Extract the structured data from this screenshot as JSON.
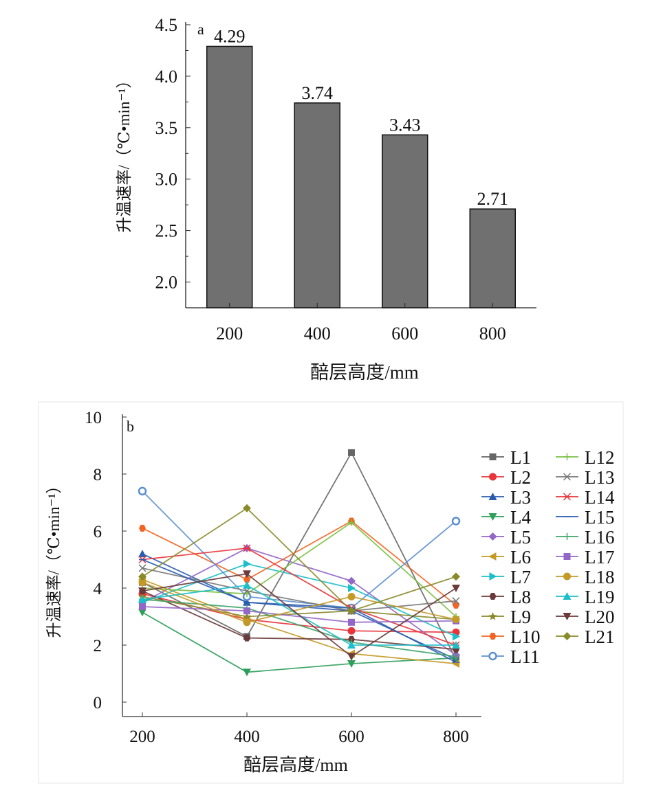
{
  "chart_data": [
    {
      "type": "bar",
      "panel_label": "a",
      "categories": [
        "200",
        "400",
        "600",
        "800"
      ],
      "values": [
        4.29,
        3.74,
        3.43,
        2.71
      ],
      "data_labels": [
        "4.29",
        "3.74",
        "3.43",
        "2.71"
      ],
      "xlabel": "醅层高度/mm",
      "ylabel": "升温速率/（℃•min⁻¹）",
      "ylim": [
        1.75,
        4.5
      ],
      "yticks": [
        "2.0",
        "2.5",
        "3.0",
        "3.5",
        "4.0",
        "4.5"
      ],
      "bar_color": "#707070",
      "grid": false
    },
    {
      "type": "line",
      "panel_label": "b",
      "x": [
        200,
        400,
        600,
        800
      ],
      "xticks": [
        "200",
        "400",
        "600",
        "800"
      ],
      "xlabel": "醅层高度/mm",
      "ylabel": "升温速率/（℃•min⁻¹）",
      "ylim": [
        -0.5,
        10
      ],
      "yticks": [
        "0",
        "2",
        "4",
        "6",
        "8",
        "10"
      ],
      "grid": false,
      "legend_position": "right",
      "series": [
        {
          "name": "L1",
          "color": "#666666",
          "marker": "square",
          "values": [
            4.2,
            2.3,
            8.75,
            1.5
          ]
        },
        {
          "name": "L2",
          "color": "#e8343a",
          "marker": "circle",
          "values": [
            3.8,
            2.9,
            2.5,
            2.45
          ]
        },
        {
          "name": "L3",
          "color": "#2a5db0",
          "marker": "triangle-up",
          "values": [
            5.2,
            3.5,
            3.2,
            1.5
          ]
        },
        {
          "name": "L4",
          "color": "#2e9e5b",
          "marker": "triangle-down",
          "values": [
            3.15,
            1.05,
            1.35,
            1.55
          ]
        },
        {
          "name": "L5",
          "color": "#9367c8",
          "marker": "diamond",
          "values": [
            3.5,
            5.4,
            4.25,
            1.65
          ]
        },
        {
          "name": "L6",
          "color": "#c49a26",
          "marker": "triangle-left",
          "values": [
            4.3,
            2.9,
            1.7,
            1.35
          ]
        },
        {
          "name": "L7",
          "color": "#1cbfc9",
          "marker": "triangle-right",
          "values": [
            3.5,
            4.85,
            4.0,
            2.3
          ]
        },
        {
          "name": "L8",
          "color": "#6b3a3a",
          "marker": "hexagon",
          "values": [
            3.9,
            2.25,
            2.2,
            1.85
          ]
        },
        {
          "name": "L9",
          "color": "#8a8a2a",
          "marker": "star",
          "values": [
            3.7,
            3.0,
            3.2,
            2.9
          ]
        },
        {
          "name": "L10",
          "color": "#f26522",
          "marker": "hexagon",
          "values": [
            6.1,
            4.3,
            6.35,
            3.4
          ]
        },
        {
          "name": "L11",
          "color": "#5b8fd0",
          "marker": "circle-open",
          "values": [
            7.4,
            3.7,
            3.3,
            6.35
          ]
        },
        {
          "name": "L12",
          "color": "#7ac143",
          "marker": "plus",
          "values": [
            4.0,
            3.8,
            6.3,
            3.0
          ]
        },
        {
          "name": "L13",
          "color": "#777777",
          "marker": "x",
          "values": [
            4.7,
            3.9,
            3.2,
            3.55
          ]
        },
        {
          "name": "L14",
          "color": "#e8343a",
          "marker": "asterisk",
          "values": [
            5.0,
            5.4,
            3.3,
            2.0
          ]
        },
        {
          "name": "L15",
          "color": "#2a5db0",
          "marker": "dash",
          "values": [
            5.0,
            3.5,
            3.3,
            1.4
          ]
        },
        {
          "name": "L16",
          "color": "#3fa46a",
          "marker": "bar",
          "values": [
            3.6,
            3.3,
            2.1,
            1.6
          ]
        },
        {
          "name": "L17",
          "color": "#9367c8",
          "marker": "square",
          "values": [
            3.35,
            3.2,
            2.8,
            2.85
          ]
        },
        {
          "name": "L18",
          "color": "#c49a26",
          "marker": "circle",
          "values": [
            4.2,
            2.8,
            3.7,
            2.9
          ]
        },
        {
          "name": "L19",
          "color": "#1cbfc9",
          "marker": "triangle-up",
          "values": [
            3.6,
            4.1,
            2.0,
            2.0
          ]
        },
        {
          "name": "L20",
          "color": "#6b3a3a",
          "marker": "triangle-down",
          "values": [
            3.9,
            4.5,
            1.6,
            4.0
          ]
        },
        {
          "name": "L21",
          "color": "#8a8a2a",
          "marker": "diamond",
          "values": [
            4.4,
            6.8,
            3.2,
            4.4
          ]
        }
      ]
    }
  ]
}
